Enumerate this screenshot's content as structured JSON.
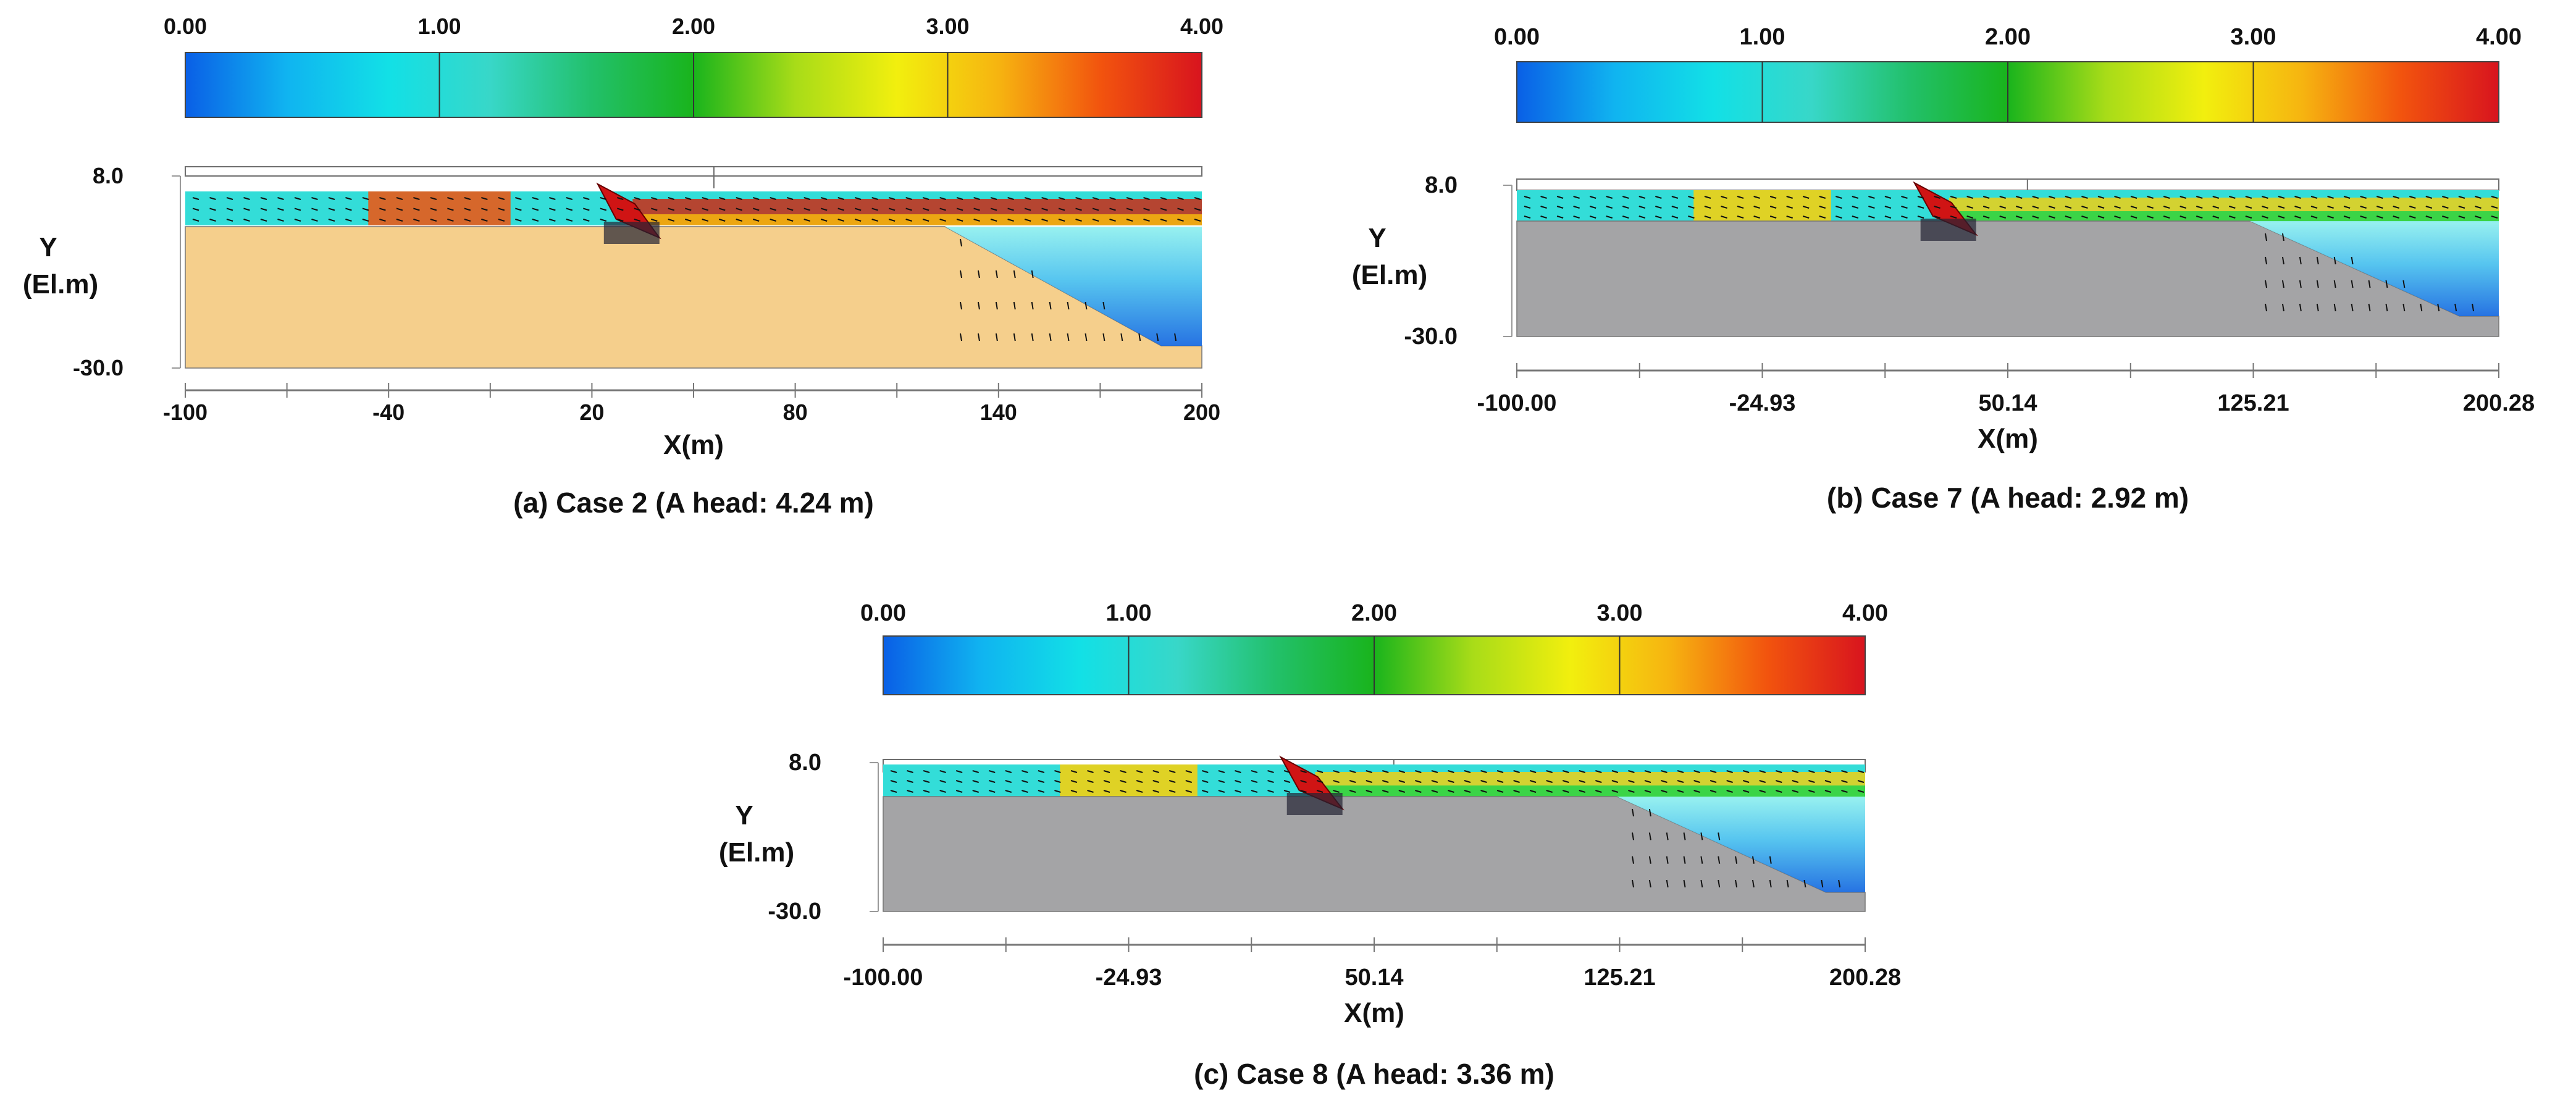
{
  "colors": {
    "scale_stops": [
      "#0a5fe6",
      "#10b4f0",
      "#12e0e6",
      "#38d7c8",
      "#22c06a",
      "#19b41c",
      "#a8dc18",
      "#f2ef0e",
      "#f6b410",
      "#f2540e",
      "#d8141e"
    ],
    "soil_case2": "#f5cf8c",
    "soil_gray": "#a4a4a6",
    "water": "#33ddd8",
    "high": "#d01414",
    "outline": "#6e6e6e"
  },
  "panels": [
    {
      "id": "a",
      "caption": "(a) Case 2 (A head: 4.24 m)",
      "scale_labels": [
        "0.00",
        "1.00",
        "2.00",
        "3.00",
        "4.00"
      ],
      "y_axis": {
        "label_line1": "Y",
        "label_line2": "(El.m)",
        "ticks": [
          "8.0",
          "-30.0"
        ]
      },
      "x_axis": {
        "label": "X(m)",
        "ticks": [
          "-100",
          "-40",
          "20",
          "80",
          "140",
          "200"
        ]
      },
      "soil": "soil_case2",
      "flow_peak": "high"
    },
    {
      "id": "b",
      "caption": "(b) Case 7 (A head: 2.92 m)",
      "scale_labels": [
        "0.00",
        "1.00",
        "2.00",
        "3.00",
        "4.00"
      ],
      "y_axis": {
        "label_line1": "Y",
        "label_line2": "(El.m)",
        "ticks": [
          "8.0",
          "-30.0"
        ]
      },
      "x_axis": {
        "label": "X(m)",
        "ticks": [
          "-100.00",
          "-24.93",
          "50.14",
          "125.21",
          "200.28"
        ]
      },
      "soil": "soil_gray",
      "flow_peak": "moderate"
    },
    {
      "id": "c",
      "caption": "(c) Case 8 (A head: 3.36 m)",
      "scale_labels": [
        "0.00",
        "1.00",
        "2.00",
        "3.00",
        "4.00"
      ],
      "y_axis": {
        "label_line1": "Y",
        "label_line2": "(El.m)",
        "ticks": [
          "8.0",
          "-30.0"
        ]
      },
      "x_axis": {
        "label": "X(m)",
        "ticks": [
          "-100.00",
          "-24.93",
          "50.14",
          "125.21",
          "200.28"
        ]
      },
      "soil": "soil_gray",
      "flow_peak": "moderate"
    }
  ]
}
